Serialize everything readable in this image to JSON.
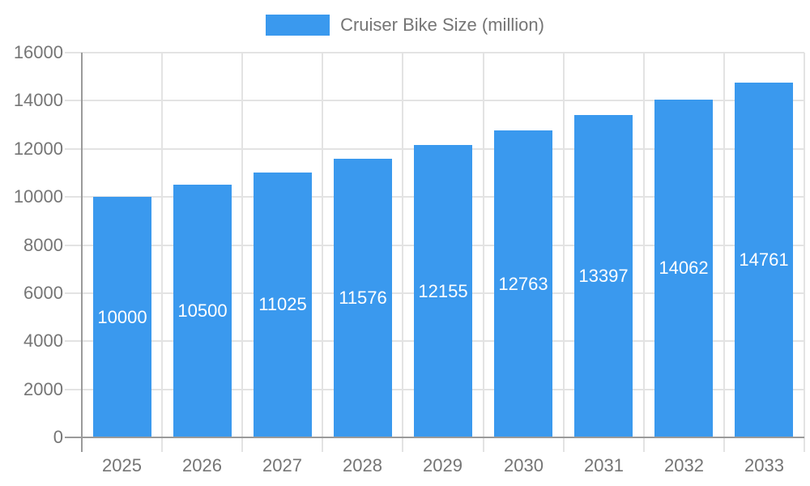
{
  "legend": {
    "label": "Cruiser Bike Size (million)"
  },
  "colors": {
    "bar": "#3A99EE",
    "axis_line": "#9A9A9A",
    "gridline": "#E3E3E3",
    "tick_label": "#757575",
    "bar_label": "#FFFFFF",
    "legend_text": "#757575",
    "background": "#FFFFFF"
  },
  "chart_data": {
    "type": "bar",
    "title": "Cruiser Bike Size (million)",
    "categories": [
      "2025",
      "2026",
      "2027",
      "2028",
      "2029",
      "2030",
      "2031",
      "2032",
      "2033"
    ],
    "values": [
      10000,
      10500,
      11025,
      11576,
      12155,
      12763,
      13397,
      14062,
      14761
    ],
    "xlabel": "",
    "ylabel": "",
    "ylim": [
      0,
      16000
    ],
    "ytick_step": 2000,
    "ytick_labels": [
      "0",
      "2000",
      "4000",
      "6000",
      "8000",
      "10000",
      "12000",
      "14000",
      "16000"
    ],
    "grid": true,
    "legend_position": "top-center",
    "bar_labels": "inside-center-white"
  }
}
